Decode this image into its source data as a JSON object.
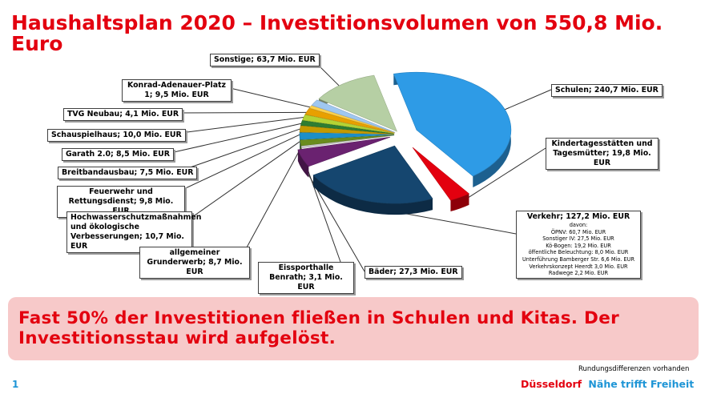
{
  "slide": {
    "title": "Haushaltsplan 2020 – Investitionsvolumen von 550,8 Mio. Euro",
    "banner_text": "Fast 50% der Investitionen fließen in Schulen und Kitas. Der Investitionsstau wird aufgelöst.",
    "footnote": "Rundungsdifferenzen vorhanden",
    "page_number": "1",
    "brand_city": "Düsseldorf",
    "brand_claim": "Nähe trifft Freiheit"
  },
  "colors": {
    "accent_red": "#e3000f",
    "accent_blue": "#1e95d6",
    "banner_bg": "#f7c9c9"
  },
  "chart_data": {
    "type": "pie",
    "unit": "Mio. EUR",
    "total": 550.8,
    "series": [
      {
        "label": "Schulen",
        "value": 240.7,
        "color": "#2e9be6"
      },
      {
        "label": "Kindertagesstätten und Tagesmütter",
        "value": 19.8,
        "color": "#e3000f"
      },
      {
        "label": "Verkehr",
        "value": 127.2,
        "color": "#15466f"
      },
      {
        "label": "Bäder",
        "value": 27.3,
        "color": "#6a2270"
      },
      {
        "label": "Eissporthalle Benrath",
        "value": 3.1,
        "color": "#c8c8c8"
      },
      {
        "label": "allgemeiner Grunderwerb",
        "value": 8.7,
        "color": "#6a8c1e"
      },
      {
        "label": "Hochwasserschutzmaßnahmen und ökologische Verbesserungen",
        "value": 10.7,
        "color": "#1d8fc8"
      },
      {
        "label": "Feuerwehr und Rettungsdienst",
        "value": 9.8,
        "color": "#c49a00"
      },
      {
        "label": "Breitbandausbau",
        "value": 7.5,
        "color": "#2e7d32"
      },
      {
        "label": "Garath 2.0",
        "value": 8.5,
        "color": "#b5d334"
      },
      {
        "label": "Schauspielhaus",
        "value": 10.0,
        "color": "#e8a000"
      },
      {
        "label": "TVG Neubau",
        "value": 4.1,
        "color": "#ffd24d"
      },
      {
        "label": "Konrad-Adenauer-Platz 1",
        "value": 9.5,
        "color": "#9fc7f0"
      },
      {
        "label": "Sonstige",
        "value": 63.7,
        "color": "#b6cfa4"
      }
    ],
    "verkehr_breakdown": {
      "heading": "davon:",
      "items": [
        "ÖPNV: 60,7 Mio. EUR",
        "Sonstiger IV: 27,5 Mio. EUR",
        "Kö-Bogen: 19,2 Mio. EUR",
        "öffentliche Beleuchtung: 8,0 Mio. EUR",
        "Unterführung Bamberger Str. 6,6 Mio. EUR",
        "Verkehrskonzept Heerdt 3,0 Mio. EUR",
        "Radwege 2,2 Mio. EUR"
      ]
    }
  },
  "callouts": {
    "schulen": "Schulen; 240,7 Mio. EUR",
    "kita": "Kindertagesstätten und Tagesmütter; 19,8 Mio. EUR",
    "verkehr": "Verkehr; 127,2 Mio. EUR",
    "baeder": "Bäder; 27,3 Mio. EUR",
    "eissport": "Eissporthalle Benrath; 3,1 Mio. EUR",
    "grunderwerb": "allgemeiner Grunderwerb; 8,7 Mio. EUR",
    "hochwasser": "Hochwasserschutzmaßnahmen und ökologische Verbesserungen; 10,7 Mio. EUR",
    "feuerwehr": "Feuerwehr und Rettungsdienst; 9,8 Mio. EUR",
    "breitband": "Breitbandausbau; 7,5 Mio. EUR",
    "garath": "Garath 2.0; 8,5 Mio. EUR",
    "schauspiel": "Schauspielhaus; 10,0 Mio. EUR",
    "tvg": "TVG Neubau; 4,1 Mio. EUR",
    "konrad": "Konrad-Adenauer-Platz 1; 9,5 Mio. EUR",
    "sonstige": "Sonstige; 63,7 Mio. EUR"
  }
}
